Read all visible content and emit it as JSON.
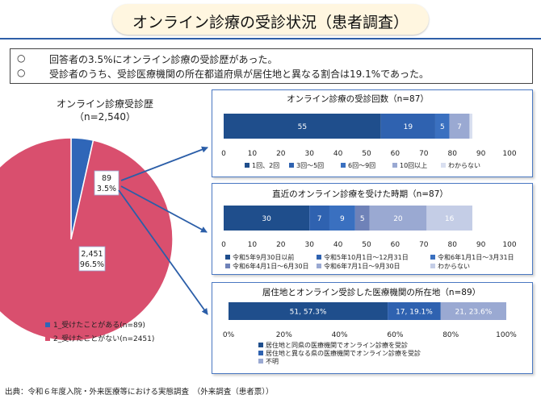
{
  "page": {
    "title": "オンライン診療の受診状況（患者調査）",
    "summary": [
      {
        "bullet": "○",
        "text": "回答者の3.5%にオンライン診療の受診歴があった。"
      },
      {
        "bullet": "○",
        "text": "受診者のうち、受診医療機関の所在都道府県が居住地と異なる割合は19.1%であった。"
      }
    ],
    "footnote": "出典：令和６年度入院・外来医療等における実態調査　（外来調査（患者票））"
  },
  "colors": {
    "dark_navy": "#1f4e8c",
    "mid_blue": "#2f62b0",
    "blue": "#3a70c0",
    "slate": "#6f82b8",
    "lavender": "#9aa9d2",
    "pale": "#c4cde6",
    "very_pale": "#d9dff0",
    "pie_pink": "#d94f6e",
    "pie_blue": "#2f66b8",
    "arrow": "#2b5ea8"
  },
  "chart_data": [
    {
      "type": "pie",
      "title": "オンライン診療受診歴",
      "subtitle": "（n=2,540）",
      "slices": [
        {
          "name": "1_受けたことがある(n=89)",
          "value": 89,
          "percent": "3.5%",
          "count_label": "89",
          "color": "#2f66b8"
        },
        {
          "name": "2_受けたことがない(n=2451)",
          "value": 2451,
          "percent": "96.5%",
          "count_label": "2,451",
          "color": "#d94f6e"
        }
      ]
    },
    {
      "type": "bar",
      "title": "オンライン診療の受診回数（n=87）",
      "xlim": [
        0,
        100
      ],
      "ticks": [
        "0",
        "10",
        "20",
        "30",
        "40",
        "50",
        "60",
        "70",
        "80",
        "90",
        "100"
      ],
      "series": [
        {
          "name": "1回、2回",
          "value": 55,
          "label": "55",
          "color": "#1f4e8c"
        },
        {
          "name": "3回～5回",
          "value": 19,
          "label": "19",
          "color": "#2f62b0"
        },
        {
          "name": "6回～9回",
          "value": 5,
          "label": "5",
          "color": "#3a70c0"
        },
        {
          "name": "10回以上",
          "value": 7,
          "label": "7",
          "color": "#9aa9d2"
        },
        {
          "name": "わからない",
          "value": 1,
          "label": "1",
          "color": "#d9dff0"
        }
      ]
    },
    {
      "type": "bar",
      "title": "直近のオンライン診療を受けた時期（n=87）",
      "xlim": [
        0,
        100
      ],
      "ticks": [
        "0",
        "10",
        "20",
        "30",
        "40",
        "50",
        "60",
        "70",
        "80",
        "90",
        "100"
      ],
      "series": [
        {
          "name": "令和5年9月30日以前",
          "value": 30,
          "label": "30",
          "color": "#1f4e8c"
        },
        {
          "name": "令和5年10月1日～12月31日",
          "value": 7,
          "label": "7",
          "color": "#2f62b0"
        },
        {
          "name": "令和6年1月1日～3月31日",
          "value": 9,
          "label": "9",
          "color": "#3a70c0"
        },
        {
          "name": "令和6年4月1日～6月30日",
          "value": 5,
          "label": "5",
          "color": "#6f82b8"
        },
        {
          "name": "令和6年7月1日～9月30日",
          "value": 20,
          "label": "20",
          "color": "#9aa9d2"
        },
        {
          "name": "わからない",
          "value": 16,
          "label": "16",
          "color": "#c4cde6"
        }
      ]
    },
    {
      "type": "bar",
      "title": "居住地とオンライン受診した医療機関の所在地（n=89）",
      "xlim": [
        0,
        100
      ],
      "ticks": [
        "0%",
        "20%",
        "40%",
        "60%",
        "80%",
        "100%"
      ],
      "series": [
        {
          "name": "居住地と同県の医療機関でオンライン診療を受診",
          "value": 57.3,
          "label": "51, 57.3%",
          "color": "#1f4e8c"
        },
        {
          "name": "居住地と異なる県の医療機関でオンライン診療を受診",
          "value": 19.1,
          "label": "17, 19.1%",
          "color": "#2f62b0"
        },
        {
          "name": "不明",
          "value": 23.6,
          "label": "21, 23.6%",
          "color": "#9aa9d2"
        }
      ]
    }
  ]
}
